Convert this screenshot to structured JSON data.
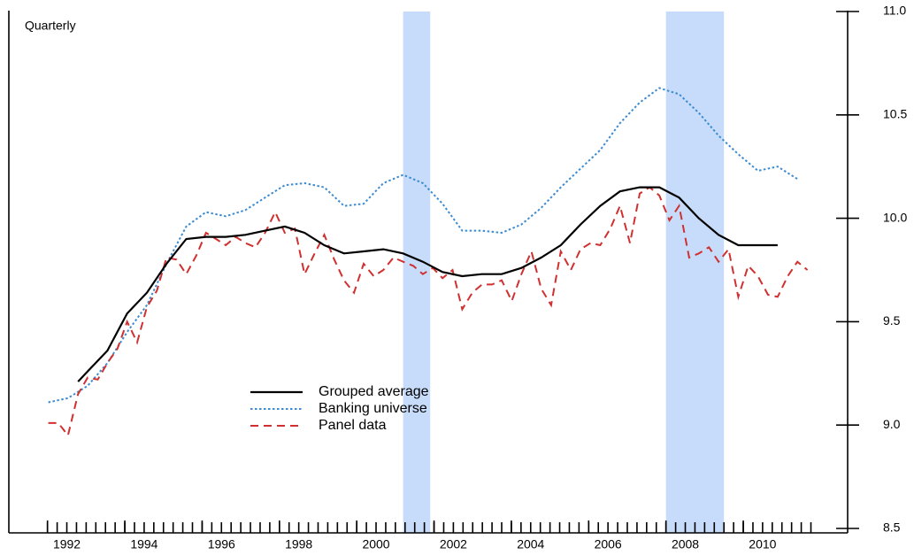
{
  "chart_data": {
    "type": "line",
    "subtitle": "Quarterly",
    "xlim": [
      1991,
      2012.7
    ],
    "xticks": [
      {
        "value": 1992,
        "label": "1992"
      },
      {
        "value": 1994,
        "label": "1994"
      },
      {
        "value": 1996,
        "label": "1996"
      },
      {
        "value": 1998,
        "label": "1998"
      },
      {
        "value": 2000,
        "label": "2000"
      },
      {
        "value": 2002,
        "label": "2002"
      },
      {
        "value": 2004,
        "label": "2004"
      },
      {
        "value": 2006,
        "label": "2006"
      },
      {
        "value": 2008,
        "label": "2008"
      },
      {
        "value": 2010,
        "label": "2010"
      }
    ],
    "ylim": [
      8.5,
      11.0
    ],
    "yticks": [
      {
        "value": 8.5,
        "label": "8.5"
      },
      {
        "value": 9,
        "label": "9.0"
      },
      {
        "value": 9.5,
        "label": "9.5"
      },
      {
        "value": 10,
        "label": "10.0"
      },
      {
        "value": 10.5,
        "label": "10.5"
      },
      {
        "value": 11,
        "label": "11.0"
      }
    ],
    "y_axis_side": "right",
    "shaded_periods": [
      [
        2001.2,
        2001.9
      ],
      [
        2008.0,
        2009.5
      ]
    ],
    "shade_color": "#c6dcfa",
    "series": [
      {
        "name": "Grouped average",
        "color": "#000000",
        "style": "solid",
        "x": [
          1992.79,
          1993.04,
          1993.55,
          1994.06,
          1994.57,
          1995.08,
          1995.59,
          1996.1,
          1996.61,
          1997.12,
          1997.63,
          1998.14,
          1998.65,
          1999.16,
          1999.67,
          2000.18,
          2000.69,
          2001.2,
          2001.71,
          2002.22,
          2002.73,
          2003.24,
          2003.75,
          2004.26,
          2004.77,
          2005.28,
          2005.79,
          2006.3,
          2006.81,
          2007.32,
          2007.83,
          2008.34,
          2008.85,
          2009.36,
          2009.87,
          2010.38,
          2010.89
        ],
        "values": [
          9.21,
          9.26,
          9.36,
          9.54,
          9.64,
          9.78,
          9.9,
          9.91,
          9.91,
          9.92,
          9.94,
          9.96,
          9.93,
          9.87,
          9.83,
          9.84,
          9.85,
          9.83,
          9.79,
          9.74,
          9.72,
          9.73,
          9.73,
          9.76,
          9.81,
          9.87,
          9.97,
          10.06,
          10.13,
          10.15,
          10.15,
          10.1,
          10.0,
          9.92,
          9.87,
          9.87,
          9.87
        ]
      },
      {
        "name": "Banking universe",
        "color": "#3d8bd0",
        "style": "dotted",
        "x": [
          1992.02,
          1992.53,
          1993.04,
          1993.55,
          1994.06,
          1994.57,
          1995.08,
          1995.59,
          1996.1,
          1996.61,
          1997.12,
          1997.63,
          1998.14,
          1998.65,
          1999.16,
          1999.67,
          2000.18,
          2000.69,
          2001.2,
          2001.71,
          2002.22,
          2002.73,
          2003.24,
          2003.75,
          2004.26,
          2004.77,
          2005.28,
          2005.79,
          2006.3,
          2006.81,
          2007.32,
          2007.83,
          2008.34,
          2008.85,
          2009.36,
          2009.87,
          2010.38,
          2010.89,
          2011.4
        ],
        "values": [
          9.11,
          9.13,
          9.19,
          9.3,
          9.45,
          9.58,
          9.78,
          9.96,
          10.03,
          10.01,
          10.04,
          10.1,
          10.16,
          10.17,
          10.15,
          10.06,
          10.07,
          10.17,
          10.21,
          10.17,
          10.07,
          9.94,
          9.94,
          9.93,
          9.97,
          10.05,
          10.15,
          10.24,
          10.33,
          10.46,
          10.56,
          10.63,
          10.6,
          10.51,
          10.4,
          10.31,
          10.23,
          10.25,
          10.19
        ]
      },
      {
        "name": "Panel data",
        "color": "#d03030",
        "style": "dashed",
        "x": [
          1992.02,
          1992.28,
          1992.53,
          1992.79,
          1993.04,
          1993.3,
          1993.55,
          1993.81,
          1994.06,
          1994.32,
          1994.57,
          1994.83,
          1995.08,
          1995.34,
          1995.59,
          1995.85,
          1996.1,
          1996.36,
          1996.61,
          1996.87,
          1997.12,
          1997.38,
          1997.63,
          1997.89,
          1998.14,
          1998.4,
          1998.65,
          1998.91,
          1999.16,
          1999.42,
          1999.67,
          1999.93,
          2000.18,
          2000.44,
          2000.69,
          2000.95,
          2001.2,
          2001.46,
          2001.71,
          2001.97,
          2002.22,
          2002.48,
          2002.73,
          2002.99,
          2003.24,
          2003.5,
          2003.75,
          2004.01,
          2004.26,
          2004.52,
          2004.77,
          2005.03,
          2005.28,
          2005.54,
          2005.79,
          2006.05,
          2006.3,
          2006.56,
          2006.81,
          2007.07,
          2007.32,
          2007.58,
          2007.83,
          2008.09,
          2008.34,
          2008.6,
          2008.85,
          2009.11,
          2009.36,
          2009.62,
          2009.87,
          2010.13,
          2010.38,
          2010.64,
          2010.89,
          2011.15,
          2011.4,
          2011.66
        ],
        "values": [
          9.01,
          9.01,
          8.95,
          9.15,
          9.23,
          9.22,
          9.3,
          9.37,
          9.5,
          9.4,
          9.57,
          9.65,
          9.81,
          9.8,
          9.73,
          9.82,
          9.93,
          9.9,
          9.87,
          9.91,
          9.88,
          9.86,
          9.93,
          10.03,
          9.93,
          9.95,
          9.73,
          9.83,
          9.92,
          9.8,
          9.7,
          9.64,
          9.78,
          9.72,
          9.75,
          9.81,
          9.79,
          9.77,
          9.73,
          9.76,
          9.71,
          9.75,
          9.56,
          9.64,
          9.68,
          9.68,
          9.7,
          9.6,
          9.73,
          9.84,
          9.66,
          9.58,
          9.84,
          9.75,
          9.85,
          9.88,
          9.87,
          9.95,
          10.06,
          9.88,
          10.12,
          10.15,
          10.11,
          9.99,
          10.06,
          9.81,
          9.83,
          9.86,
          9.79,
          9.85,
          9.62,
          9.77,
          9.72,
          9.63,
          9.62,
          9.72,
          9.79,
          9.75
        ]
      }
    ]
  }
}
